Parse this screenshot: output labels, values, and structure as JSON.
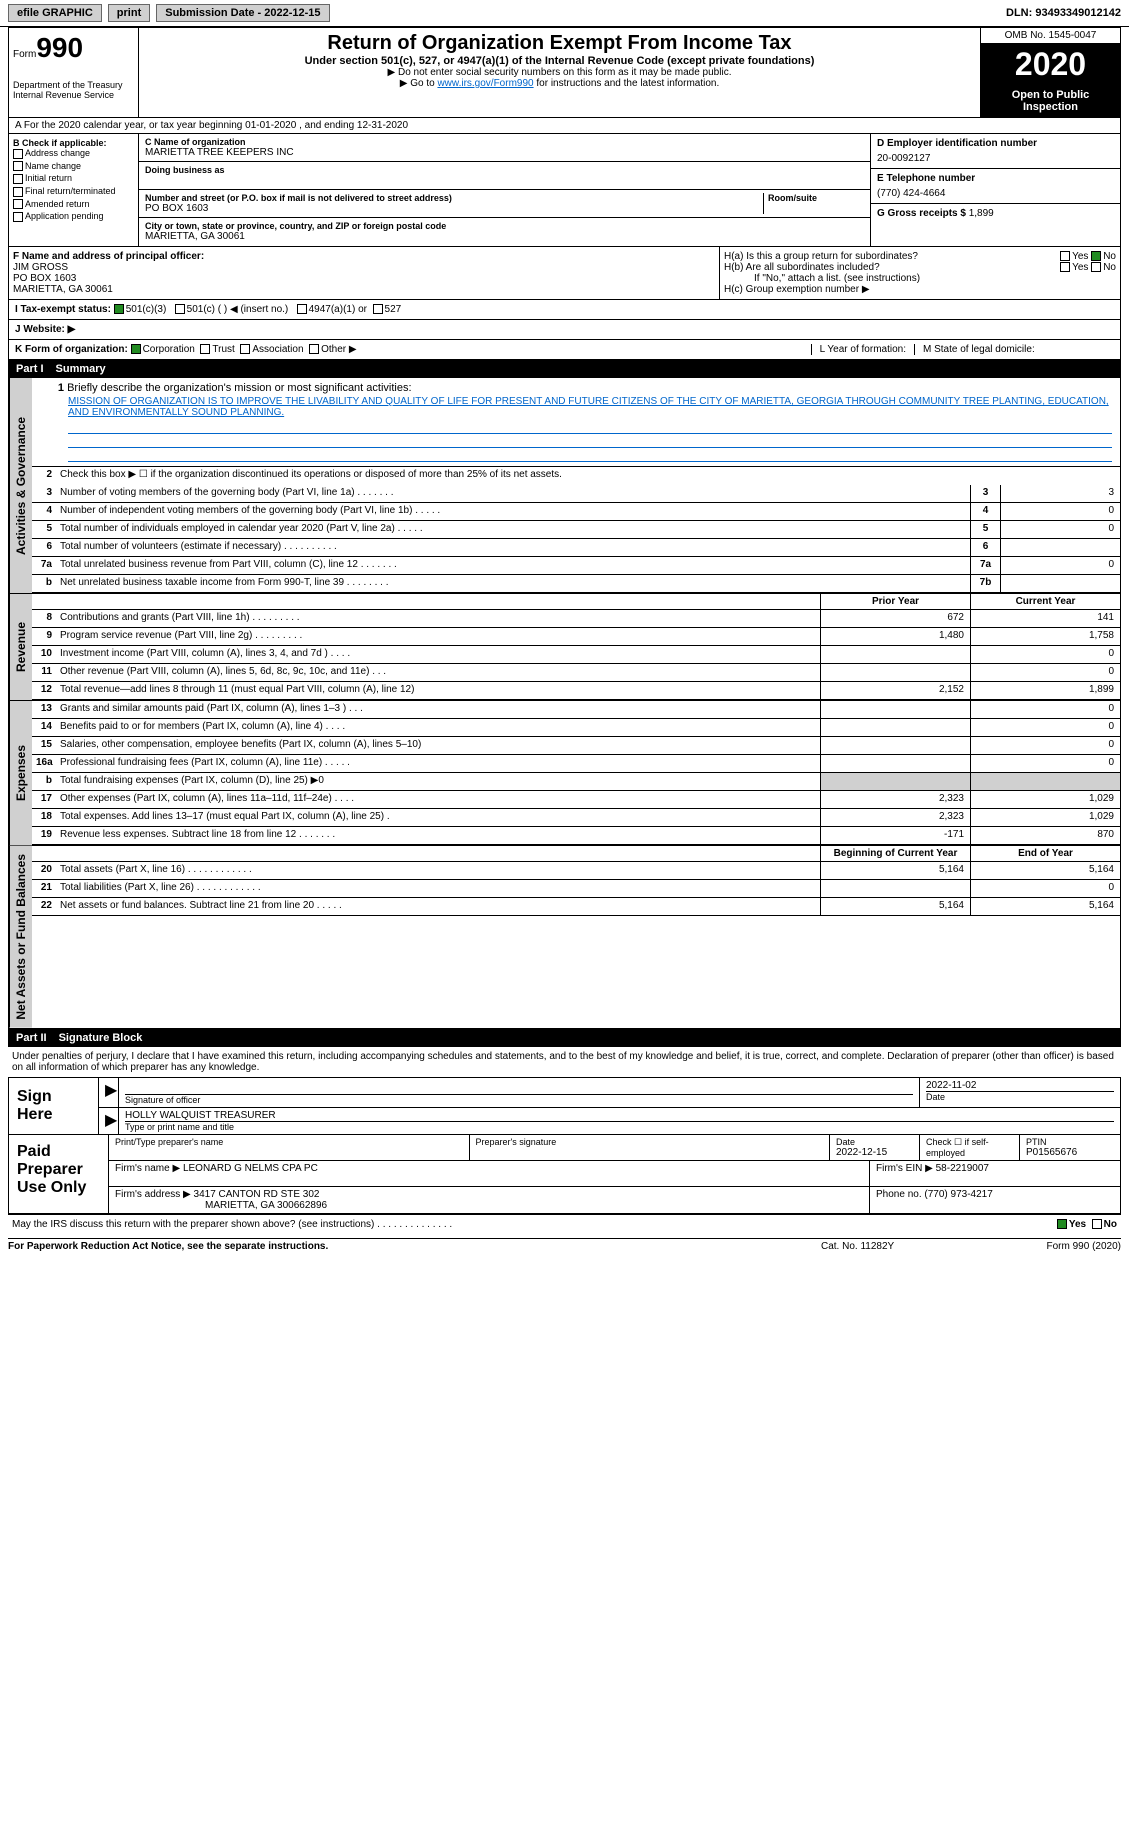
{
  "top_bar": {
    "efile_label": "efile GRAPHIC",
    "print_btn": "print",
    "submission_label": "Submission Date - 2022-12-15",
    "dln": "DLN: 93493349012142"
  },
  "header": {
    "form_label": "Form",
    "form_number": "990",
    "dept": "Department of the Treasury\nInternal Revenue Service",
    "title": "Return of Organization Exempt From Income Tax",
    "subtitle": "Under section 501(c), 527, or 4947(a)(1) of the Internal Revenue Code (except private foundations)",
    "instr1": "▶ Do not enter social security numbers on this form as it may be made public.",
    "instr2_prefix": "▶ Go to ",
    "instr2_link": "www.irs.gov/Form990",
    "instr2_suffix": " for instructions and the latest information.",
    "omb": "OMB No. 1545-0047",
    "year": "2020",
    "inspect": "Open to Public Inspection"
  },
  "period": "A For the 2020 calendar year, or tax year beginning 01-01-2020   , and ending 12-31-2020",
  "section_b": {
    "label": "B Check if applicable:",
    "opts": [
      "Address change",
      "Name change",
      "Initial return",
      "Final return/terminated",
      "Amended return",
      "Application pending"
    ]
  },
  "section_c": {
    "name_label": "C Name of organization",
    "name": "MARIETTA TREE KEEPERS INC",
    "dba_label": "Doing business as",
    "street_label": "Number and street (or P.O. box if mail is not delivered to street address)",
    "street": "PO BOX 1603",
    "room_label": "Room/suite",
    "city_label": "City or town, state or province, country, and ZIP or foreign postal code",
    "city": "MARIETTA, GA  30061"
  },
  "section_d": {
    "label": "D Employer identification number",
    "value": "20-0092127"
  },
  "section_e": {
    "label": "E Telephone number",
    "value": "(770) 424-4664"
  },
  "section_g": {
    "label": "G Gross receipts $",
    "value": "1,899"
  },
  "section_f": {
    "label": "F Name and address of principal officer:",
    "name": "JIM GROSS",
    "addr1": "PO BOX 1603",
    "addr2": "MARIETTA, GA  30061"
  },
  "section_h": {
    "ha": "H(a)  Is this a group return for subordinates?",
    "hb": "H(b)  Are all subordinates included?",
    "hb_note": "If \"No,\" attach a list. (see instructions)",
    "hc": "H(c)  Group exemption number ▶",
    "yes": "Yes",
    "no": "No"
  },
  "section_i": {
    "label": "I  Tax-exempt status:",
    "opt1": "501(c)(3)",
    "opt2": "501(c) (   ) ◀ (insert no.)",
    "opt3": "4947(a)(1) or",
    "opt4": "527"
  },
  "section_j": {
    "label": "J  Website: ▶"
  },
  "section_k": {
    "label": "K Form of organization:",
    "opts": [
      "Corporation",
      "Trust",
      "Association",
      "Other ▶"
    ]
  },
  "section_l": {
    "label": "L Year of formation:"
  },
  "section_m": {
    "label": "M State of legal domicile:"
  },
  "part1": {
    "header_num": "Part I",
    "header_title": "Summary",
    "vtab_gov": "Activities & Governance",
    "vtab_rev": "Revenue",
    "vtab_exp": "Expenses",
    "vtab_net": "Net Assets or Fund Balances",
    "line1_label": "Briefly describe the organization's mission or most significant activities:",
    "mission": "MISSION OF ORGANIZATION IS TO IMPROVE THE LIVABILITY AND QUALITY OF LIFE FOR PRESENT AND FUTURE CITIZENS OF THE CITY OF MARIETTA, GEORGIA THROUGH COMMUNITY TREE PLANTING, EDUCATION, AND ENVIRONMENTALLY SOUND PLANNING.",
    "line2": "Check this box ▶ ☐  if the organization discontinued its operations or disposed of more than 25% of its net assets.",
    "gov_lines": [
      {
        "n": "3",
        "d": "Number of voting members of the governing body (Part VI, line 1a)   .    .    .    .    .    .    .",
        "box": "3",
        "v": "3"
      },
      {
        "n": "4",
        "d": "Number of independent voting members of the governing body (Part VI, line 1b)   .    .    .    .    .",
        "box": "4",
        "v": "0"
      },
      {
        "n": "5",
        "d": "Total number of individuals employed in calendar year 2020 (Part V, line 2a)   .    .    .    .    .",
        "box": "5",
        "v": "0"
      },
      {
        "n": "6",
        "d": "Total number of volunteers (estimate if necessary)   .    .    .    .    .    .    .    .    .    .",
        "box": "6",
        "v": ""
      },
      {
        "n": "7a",
        "d": "Total unrelated business revenue from Part VIII, column (C), line 12   .    .    .    .    .    .    .",
        "box": "7a",
        "v": "0"
      },
      {
        "n": "b",
        "d": "Net unrelated business taxable income from Form 990-T, line 39   .    .    .    .    .    .    .    .",
        "box": "7b",
        "v": ""
      }
    ],
    "col_prior": "Prior Year",
    "col_current": "Current Year",
    "rev_lines": [
      {
        "n": "8",
        "d": "Contributions and grants (Part VIII, line 1h)   .    .    .    .    .    .    .    .    .",
        "p": "672",
        "c": "141"
      },
      {
        "n": "9",
        "d": "Program service revenue (Part VIII, line 2g)   .    .    .    .    .    .    .    .    .",
        "p": "1,480",
        "c": "1,758"
      },
      {
        "n": "10",
        "d": "Investment income (Part VIII, column (A), lines 3, 4, and 7d )   .    .    .    .",
        "p": "",
        "c": "0"
      },
      {
        "n": "11",
        "d": "Other revenue (Part VIII, column (A), lines 5, 6d, 8c, 9c, 10c, and 11e)   .    .    .",
        "p": "",
        "c": "0"
      },
      {
        "n": "12",
        "d": "Total revenue—add lines 8 through 11 (must equal Part VIII, column (A), line 12)",
        "p": "2,152",
        "c": "1,899"
      }
    ],
    "exp_lines": [
      {
        "n": "13",
        "d": "Grants and similar amounts paid (Part IX, column (A), lines 1–3 )   .    .    .",
        "p": "",
        "c": "0"
      },
      {
        "n": "14",
        "d": "Benefits paid to or for members (Part IX, column (A), line 4)   .    .    .    .",
        "p": "",
        "c": "0"
      },
      {
        "n": "15",
        "d": "Salaries, other compensation, employee benefits (Part IX, column (A), lines 5–10)",
        "p": "",
        "c": "0"
      },
      {
        "n": "16a",
        "d": "Professional fundraising fees (Part IX, column (A), line 11e)   .    .    .    .    .",
        "p": "",
        "c": "0"
      },
      {
        "n": "b",
        "d": "Total fundraising expenses (Part IX, column (D), line 25) ▶0",
        "p": "",
        "c": "",
        "shade": true
      },
      {
        "n": "17",
        "d": "Other expenses (Part IX, column (A), lines 11a–11d, 11f–24e)   .    .    .    .",
        "p": "2,323",
        "c": "1,029"
      },
      {
        "n": "18",
        "d": "Total expenses. Add lines 13–17 (must equal Part IX, column (A), line 25)   .",
        "p": "2,323",
        "c": "1,029"
      },
      {
        "n": "19",
        "d": "Revenue less expenses. Subtract line 18 from line 12   .    .    .    .    .    .    .",
        "p": "-171",
        "c": "870"
      }
    ],
    "col_begin": "Beginning of Current Year",
    "col_end": "End of Year",
    "net_lines": [
      {
        "n": "20",
        "d": "Total assets (Part X, line 16)   .    .    .    .    .    .    .    .    .    .    .    .",
        "p": "5,164",
        "c": "5,164"
      },
      {
        "n": "21",
        "d": "Total liabilities (Part X, line 26)   .    .    .    .    .    .    .    .    .    .    .    .",
        "p": "",
        "c": "0"
      },
      {
        "n": "22",
        "d": "Net assets or fund balances. Subtract line 21 from line 20   .    .    .    .    .",
        "p": "5,164",
        "c": "5,164"
      }
    ]
  },
  "part2": {
    "header_num": "Part II",
    "header_title": "Signature Block",
    "intro": "Under penalties of perjury, I declare that I have examined this return, including accompanying schedules and statements, and to the best of my knowledge and belief, it is true, correct, and complete. Declaration of preparer (other than officer) is based on all information of which preparer has any knowledge.",
    "sign_here": "Sign Here",
    "sig_officer_label": "Signature of officer",
    "sig_date": "2022-11-02",
    "sig_date_label": "Date",
    "officer_name": "HOLLY WALQUIST  TREASURER",
    "officer_name_label": "Type or print name and title",
    "paid_label": "Paid Preparer Use Only",
    "prep_name_label": "Print/Type preparer's name",
    "prep_sig_label": "Preparer's signature",
    "prep_date_label": "Date",
    "prep_date": "2022-12-15",
    "self_emp_label": "Check ☐ if self-employed",
    "ptin_label": "PTIN",
    "ptin": "P01565676",
    "firm_name_label": "Firm's name    ▶",
    "firm_name": "LEONARD G NELMS CPA PC",
    "firm_ein_label": "Firm's EIN ▶",
    "firm_ein": "58-2219007",
    "firm_addr_label": "Firm's address ▶",
    "firm_addr": "3417 CANTON RD STE 302",
    "firm_city": "MARIETTA, GA  300662896",
    "firm_phone_label": "Phone no.",
    "firm_phone": "(770) 973-4217",
    "may_discuss": "May the IRS discuss this return with the preparer shown above? (see instructions)   .    .    .    .    .    .    .    .    .    .    .    .    .    .",
    "yes": "Yes",
    "no": "No"
  },
  "footer": {
    "left": "For Paperwork Reduction Act Notice, see the separate instructions.",
    "mid": "Cat. No. 11282Y",
    "right": "Form 990 (2020)"
  }
}
